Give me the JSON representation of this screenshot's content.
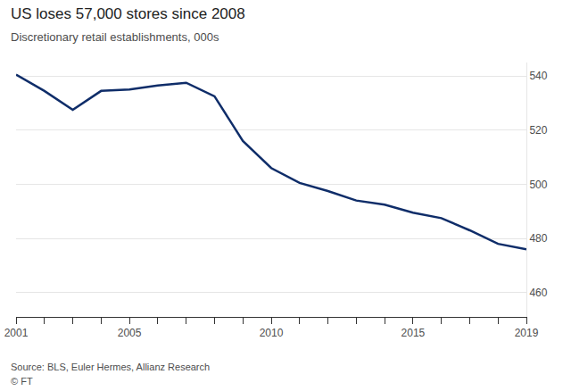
{
  "chart_data": {
    "type": "line",
    "title": "US loses 57,000 stores since 2008",
    "subtitle": "Discretionary retail establishments, 000s",
    "annotations": [
      "Source: BLS, Euler Hermes, Allianz Research",
      "© FT"
    ],
    "x": [
      2001,
      2002,
      2003,
      2004,
      2005,
      2006,
      2007,
      2008,
      2009,
      2010,
      2011,
      2012,
      2013,
      2014,
      2015,
      2016,
      2017,
      2018,
      2019
    ],
    "values": [
      540.5,
      534.5,
      527.5,
      534.5,
      535,
      536.5,
      537.5,
      532.5,
      516,
      506,
      500.5,
      497.5,
      494,
      492.5,
      489.5,
      487.5,
      483,
      478,
      476
    ],
    "color": "#0f2d69",
    "xlim": [
      2001,
      2019
    ],
    "xticks": [
      2001,
      2005,
      2010,
      2015,
      2019
    ],
    "ylim": [
      451,
      545
    ],
    "yticks": [
      460,
      480,
      500,
      520,
      540
    ],
    "grid": true
  }
}
